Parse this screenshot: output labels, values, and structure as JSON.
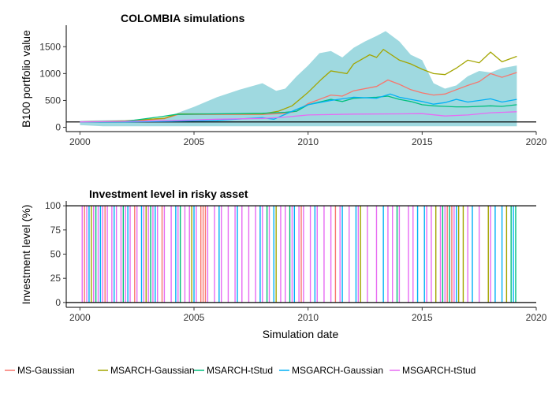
{
  "chart_data": [
    {
      "type": "area",
      "title": "COLOMBIA simulations",
      "xlabel": "",
      "ylabel": "B100 portfolio value",
      "xlim": [
        1999.4,
        2020.0
      ],
      "ylim": [
        -80,
        1900
      ],
      "x_ticks": [
        2000,
        2005,
        2010,
        2015,
        2020
      ],
      "x_tick_labels": [
        "2000",
        "2005",
        "2010",
        "2015",
        "2020"
      ],
      "y_ticks": [
        0,
        500,
        1000,
        1500
      ],
      "y_tick_labels": [
        "0",
        "500",
        "1000",
        "1500"
      ],
      "reference_line": 100,
      "band": {
        "color": "#9fd9e0",
        "x": [
          2000,
          2001,
          2002,
          2003,
          2003.8,
          2004.3,
          2005,
          2006,
          2007,
          2008,
          2008.6,
          2009,
          2009.5,
          2010,
          2010.5,
          2011,
          2011.5,
          2012,
          2012.5,
          2013,
          2013.4,
          2014,
          2014.5,
          2015,
          2015.5,
          2016,
          2016.5,
          2017,
          2017.5,
          2018,
          2018.5,
          2019.15
        ],
        "upper": [
          120,
          130,
          135,
          150,
          190,
          270,
          380,
          560,
          700,
          820,
          680,
          720,
          950,
          1150,
          1380,
          1420,
          1300,
          1480,
          1600,
          1700,
          1790,
          1600,
          1350,
          1250,
          820,
          720,
          780,
          950,
          1050,
          1020,
          1100,
          1150
        ],
        "lower": [
          40,
          20,
          20,
          20,
          20,
          20,
          20,
          20,
          20,
          20,
          20,
          20,
          20,
          20,
          20,
          20,
          20,
          20,
          20,
          20,
          20,
          20,
          20,
          20,
          20,
          20,
          20,
          20,
          20,
          20,
          20,
          20
        ]
      },
      "series": [
        {
          "name": "MS-Gaussian",
          "color": "#f8766d",
          "x": [
            2000,
            2002,
            2003.7,
            2004.3,
            2006,
            2008,
            2009,
            2009.5,
            2010,
            2011,
            2011.5,
            2012,
            2013,
            2013.5,
            2014,
            2014.5,
            2015,
            2015.5,
            2016,
            2016.5,
            2017,
            2017.5,
            2018,
            2018.5,
            2019.15
          ],
          "y": [
            100,
            110,
            160,
            240,
            240,
            240,
            260,
            300,
            440,
            600,
            580,
            680,
            760,
            880,
            800,
            700,
            640,
            600,
            620,
            700,
            780,
            850,
            1000,
            930,
            1020
          ]
        },
        {
          "name": "MSARCH-Gaussian",
          "color": "#a3a500",
          "x": [
            2000,
            2002,
            2003.7,
            2004.3,
            2006,
            2008,
            2008.7,
            2009.3,
            2010,
            2010.6,
            2011,
            2011.7,
            2012,
            2012.7,
            2013,
            2013.3,
            2014,
            2014.5,
            2015,
            2015.5,
            2016,
            2016.5,
            2017,
            2017.5,
            2018,
            2018.5,
            2019.15
          ],
          "y": [
            100,
            120,
            170,
            250,
            250,
            250,
            300,
            400,
            650,
            900,
            1050,
            1000,
            1180,
            1350,
            1300,
            1450,
            1250,
            1180,
            1080,
            1000,
            980,
            1100,
            1250,
            1200,
            1400,
            1220,
            1320
          ]
        },
        {
          "name": "MSARCH-tStud",
          "color": "#00bf7d",
          "x": [
            2000,
            2002,
            2003.6,
            2004.2,
            2006,
            2008,
            2009,
            2009.5,
            2010,
            2011,
            2011.5,
            2012,
            2013,
            2013.5,
            2014,
            2014.5,
            2015,
            2015.5,
            2016,
            2016.5,
            2017,
            2018,
            2018.5,
            2019.15
          ],
          "y": [
            100,
            110,
            200,
            240,
            250,
            260,
            280,
            300,
            420,
            520,
            480,
            540,
            560,
            580,
            520,
            480,
            420,
            400,
            390,
            380,
            380,
            400,
            390,
            420
          ]
        },
        {
          "name": "MSGARCH-Gaussian",
          "color": "#00b0f6",
          "x": [
            2000,
            2002,
            2004,
            2006,
            2008,
            2008.5,
            2009.2,
            2010,
            2011,
            2012,
            2013,
            2013.6,
            2014,
            2014.5,
            2015,
            2015.5,
            2016,
            2016.5,
            2017,
            2017.5,
            2018,
            2018.5,
            2019.15
          ],
          "y": [
            100,
            100,
            110,
            130,
            180,
            150,
            280,
            420,
            500,
            560,
            540,
            620,
            560,
            520,
            480,
            430,
            460,
            520,
            470,
            500,
            530,
            470,
            520
          ]
        },
        {
          "name": "MSGARCH-tStud",
          "color": "#e76bf3",
          "x": [
            2000,
            2002,
            2004,
            2006,
            2008,
            2009,
            2010,
            2012,
            2014,
            2015,
            2016,
            2017,
            2018,
            2019.15
          ],
          "y": [
            100,
            110,
            125,
            150,
            165,
            190,
            230,
            245,
            250,
            255,
            210,
            230,
            270,
            290
          ]
        }
      ],
      "legend": "bottom"
    },
    {
      "type": "line",
      "title": "Investment level in risky asset",
      "xlabel": "Simulation date",
      "ylabel": "Investment level (%)",
      "xlim": [
        1999.4,
        2020.0
      ],
      "ylim": [
        -5,
        105
      ],
      "x_ticks": [
        2000,
        2005,
        2010,
        2015,
        2020
      ],
      "x_tick_labels": [
        "2000",
        "2005",
        "2010",
        "2015",
        "2020"
      ],
      "y_ticks": [
        0,
        25,
        50,
        75,
        100
      ],
      "y_tick_labels": [
        "0",
        "25",
        "50",
        "75",
        "100"
      ],
      "reference_lines": [
        0,
        100
      ],
      "switching_series": [
        {
          "name": "MS-Gaussian",
          "color": "#f8766d",
          "switch_dates": [
            2000.2,
            2001.1,
            2002.4,
            2003.6,
            2005.3,
            2005.4,
            2005.5,
            2009.7,
            2011.2,
            2016.1,
            2016.3
          ]
        },
        {
          "name": "MSARCH-Gaussian",
          "color": "#a3a500",
          "switch_dates": [
            2000.5,
            2002.9,
            2004.9,
            2008.6,
            2012.3,
            2015.6,
            2016.6,
            2016.8,
            2017.9,
            2018.7
          ]
        },
        {
          "name": "MSARCH-tStud",
          "color": "#00bf7d",
          "switch_dates": [
            2000.7,
            2001.9,
            2003.1,
            2004.4,
            2008.2,
            2009.2,
            2013.9,
            2015.9,
            2016.2,
            2018.9,
            2019.1
          ]
        },
        {
          "name": "MSGARCH-Gaussian",
          "color": "#00b0f6",
          "switch_dates": [
            2000.4,
            2000.9,
            2001.5,
            2002.1,
            2002.7,
            2003.3,
            2004.2,
            2005.0,
            2006.1,
            2006.9,
            2007.9,
            2008.5,
            2009.4,
            2010.3,
            2011.5,
            2012.1,
            2013.3,
            2014.8,
            2015.1,
            2016.5,
            2017.2,
            2018.2,
            2018.5,
            2019.0
          ]
        },
        {
          "name": "MSGARCH-tStud",
          "color": "#e76bf3",
          "switch_dates": [
            2000.1,
            2000.3,
            2000.6,
            2000.8,
            2001.0,
            2001.2,
            2001.4,
            2001.6,
            2001.8,
            2002.0,
            2002.2,
            2002.5,
            2002.8,
            2003.0,
            2003.2,
            2003.4,
            2003.7,
            2004.0,
            2004.3,
            2004.6,
            2004.8,
            2005.1,
            2005.6,
            2005.9,
            2006.2,
            2006.5,
            2006.8,
            2007.1,
            2007.4,
            2007.7,
            2008.0,
            2008.3,
            2008.8,
            2009.0,
            2009.3,
            2009.6,
            2009.8,
            2010.1,
            2010.4,
            2010.7,
            2011.0,
            2011.4,
            2011.8,
            2012.2,
            2012.6,
            2013.0,
            2013.5,
            2013.7,
            2014.0,
            2014.4,
            2014.6,
            2015.2,
            2015.4,
            2015.8,
            2016.0,
            2016.4,
            2017.0,
            2017.5,
            2018.0
          ]
        }
      ]
    }
  ],
  "legend": {
    "items": [
      {
        "label": "MS-Gaussian",
        "color": "#f8766d"
      },
      {
        "label": "MSARCH-Gaussian",
        "color": "#a3a500"
      },
      {
        "label": "MSARCH-tStud",
        "color": "#00bf7d"
      },
      {
        "label": "MSGARCH-Gaussian",
        "color": "#00b0f6"
      },
      {
        "label": "MSGARCH-tStud",
        "color": "#e76bf3"
      }
    ]
  }
}
